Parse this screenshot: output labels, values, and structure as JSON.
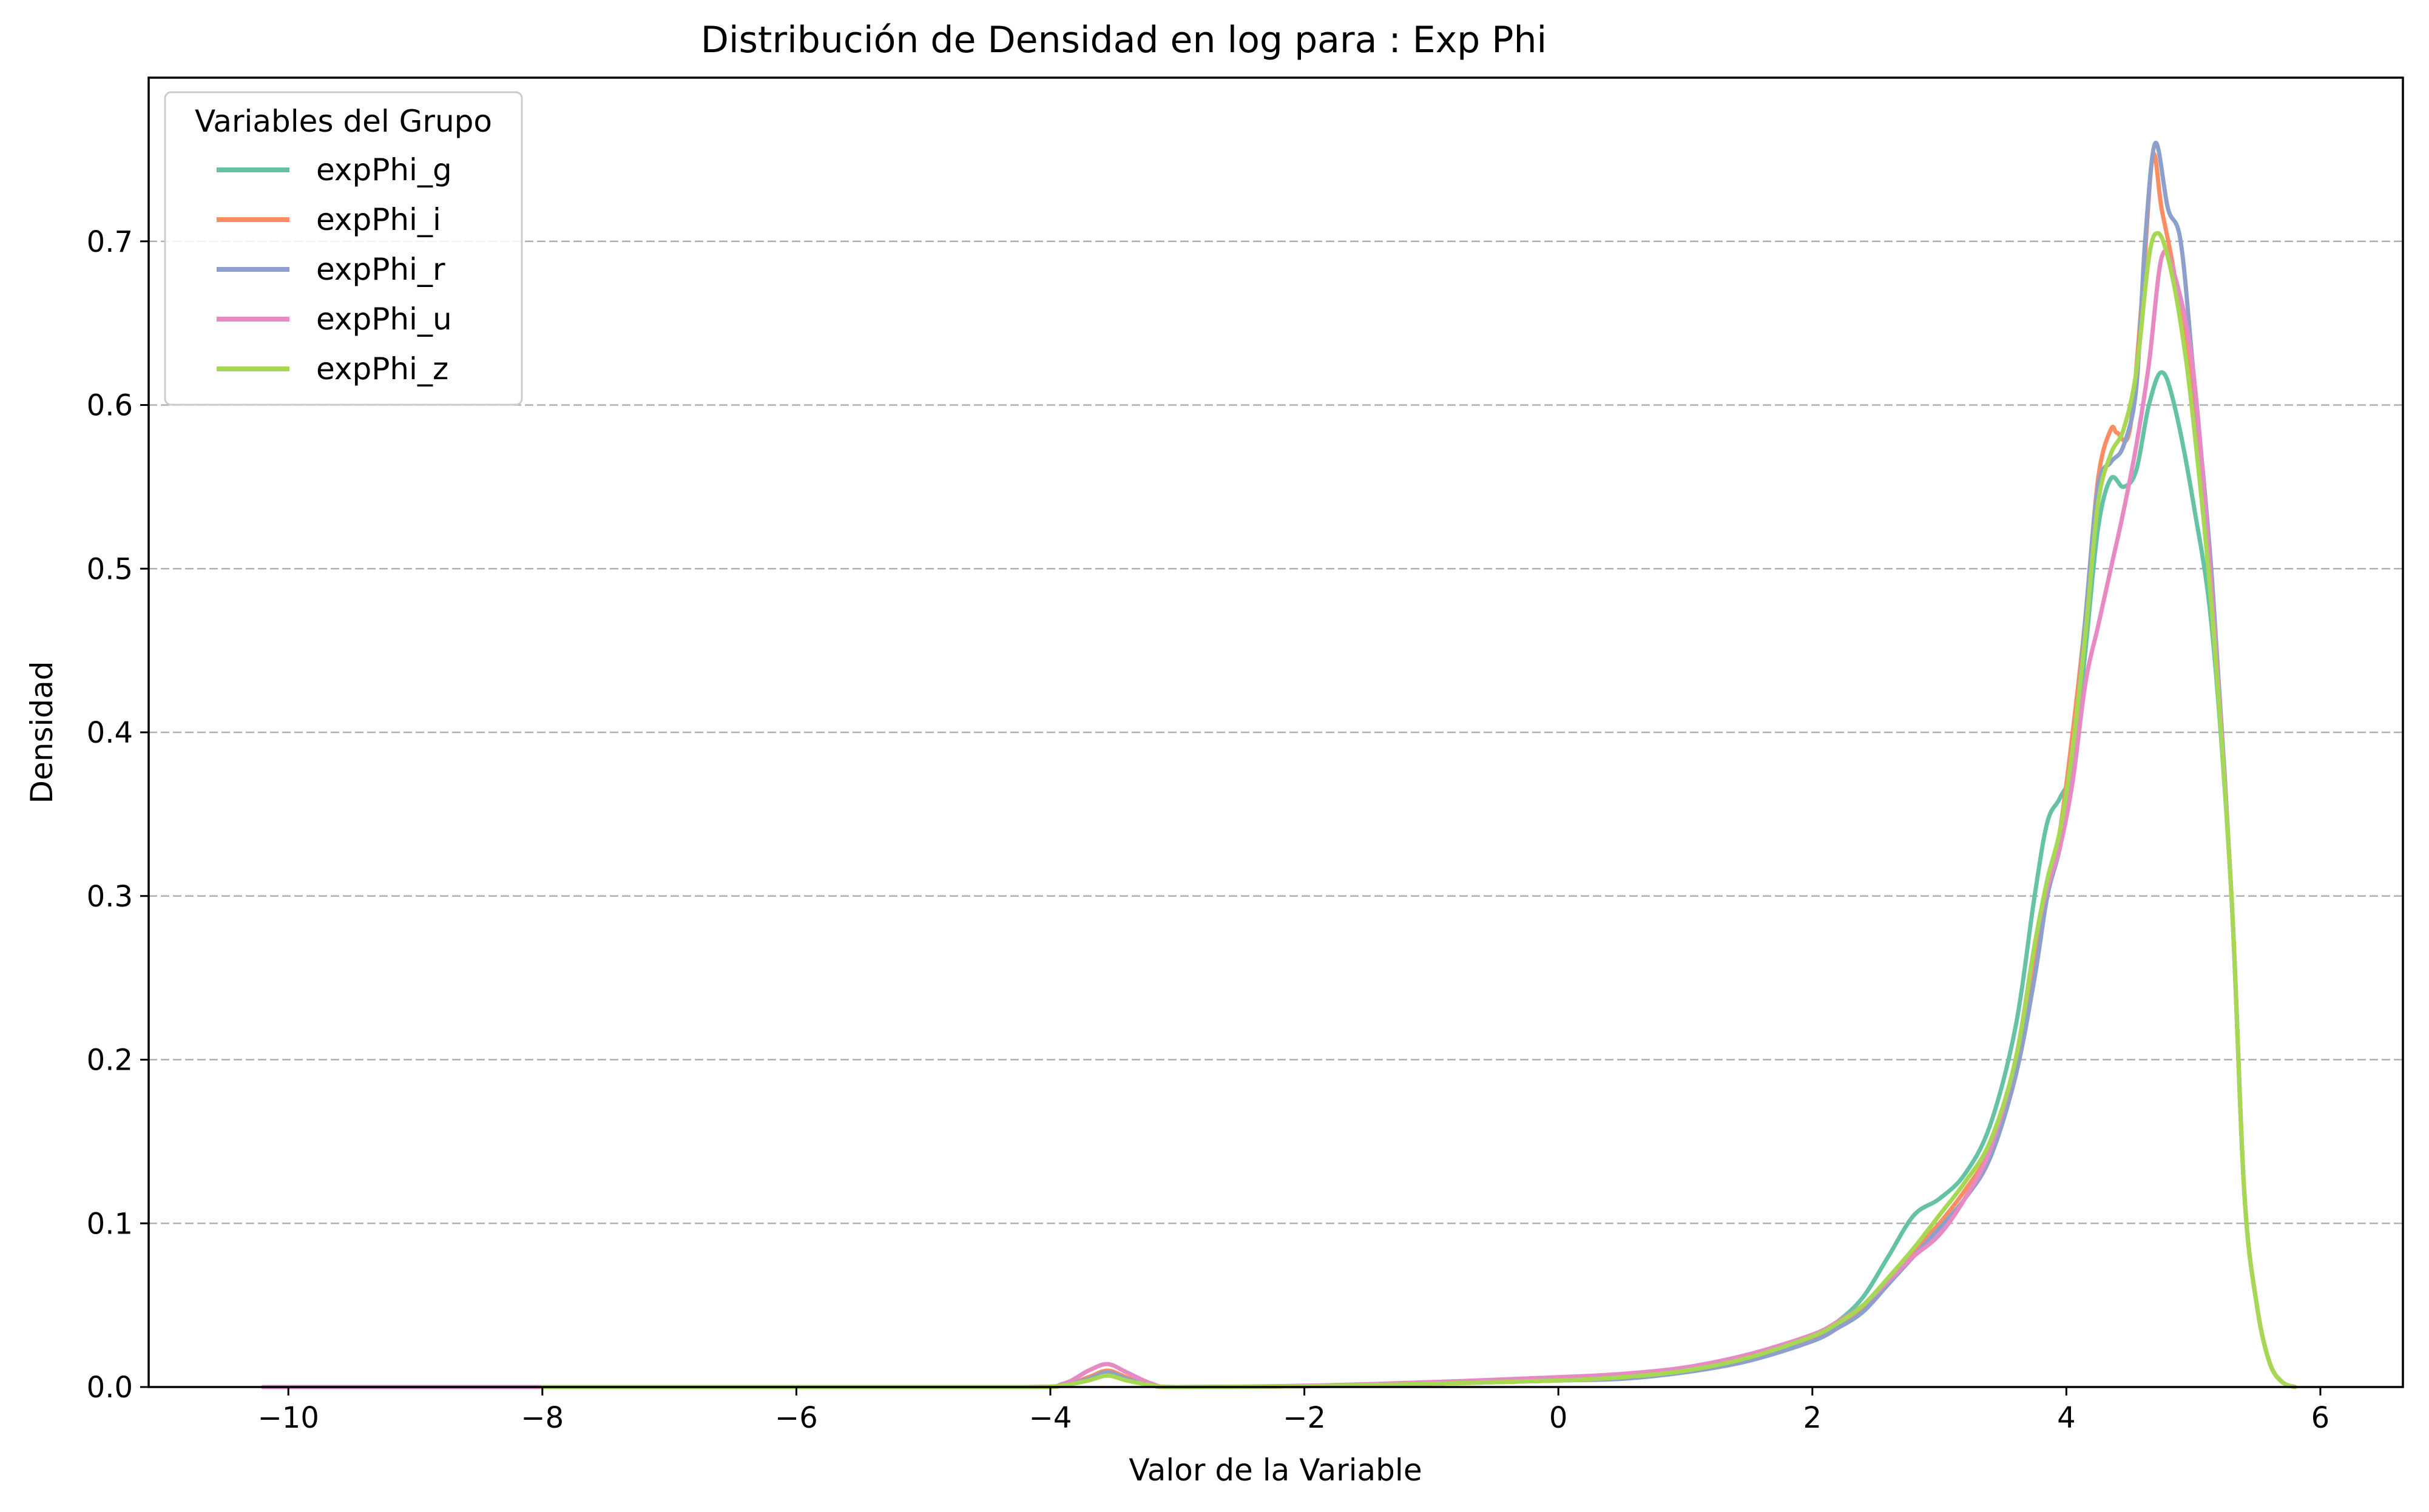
{
  "chart_data": {
    "type": "line",
    "title": "Distribución de Densidad en log para : Exp Phi",
    "xlabel": "Valor de la Variable",
    "ylabel": "Densidad",
    "xlim": [
      -11.1,
      6.65
    ],
    "ylim": [
      0,
      0.8
    ],
    "xticks": [
      -10,
      -8,
      -6,
      -4,
      -2,
      0,
      2,
      4,
      6
    ],
    "xtick_labels": [
      "−10",
      "−8",
      "−6",
      "−4",
      "−2",
      "0",
      "2",
      "4",
      "6"
    ],
    "yticks": [
      0.0,
      0.1,
      0.2,
      0.3,
      0.4,
      0.5,
      0.6,
      0.7
    ],
    "ytick_labels": [
      "0.0",
      "0.1",
      "0.2",
      "0.3",
      "0.4",
      "0.5",
      "0.6",
      "0.7"
    ],
    "grid": "y, dashed",
    "legend": {
      "title": "Variables del Grupo",
      "position": "top-left"
    },
    "series": [
      {
        "name": "expPhi_g",
        "color": "#66c2a5",
        "x": [
          -8.0,
          -6.0,
          -4.2,
          -3.9,
          -3.7,
          -3.55,
          -3.4,
          -3.2,
          -3.0,
          -2.0,
          -1.0,
          0.0,
          0.5,
          1.0,
          1.5,
          2.0,
          2.2,
          2.4,
          2.6,
          2.8,
          3.0,
          3.2,
          3.4,
          3.6,
          3.75,
          3.85,
          3.95,
          4.05,
          4.15,
          4.25,
          4.35,
          4.45,
          4.55,
          4.65,
          4.75,
          4.85,
          5.0,
          5.15,
          5.3,
          5.4,
          5.5,
          5.6,
          5.7,
          5.8
        ],
        "y": [
          0.0,
          0.0,
          0.0,
          0.001,
          0.005,
          0.008,
          0.005,
          0.001,
          0.0,
          0.0005,
          0.002,
          0.004,
          0.006,
          0.01,
          0.018,
          0.03,
          0.04,
          0.055,
          0.08,
          0.105,
          0.115,
          0.13,
          0.16,
          0.22,
          0.3,
          0.345,
          0.36,
          0.38,
          0.45,
          0.525,
          0.555,
          0.55,
          0.56,
          0.6,
          0.62,
          0.6,
          0.54,
          0.46,
          0.3,
          0.12,
          0.05,
          0.015,
          0.003,
          0.0
        ]
      },
      {
        "name": "expPhi_i",
        "color": "#fc8d62",
        "x": [
          -8.0,
          -6.0,
          -4.2,
          -3.9,
          -3.7,
          -3.55,
          -3.4,
          -3.2,
          -3.0,
          -2.0,
          -1.0,
          0.0,
          0.5,
          1.0,
          1.5,
          2.0,
          2.2,
          2.4,
          2.6,
          2.8,
          3.0,
          3.2,
          3.4,
          3.6,
          3.75,
          3.85,
          3.95,
          4.05,
          4.15,
          4.25,
          4.35,
          4.4,
          4.5,
          4.6,
          4.68,
          4.75,
          4.85,
          5.0,
          5.15,
          5.3,
          5.4,
          5.5,
          5.6,
          5.7,
          5.8
        ],
        "y": [
          0.0,
          0.0,
          0.0,
          0.001,
          0.006,
          0.01,
          0.006,
          0.001,
          0.0,
          0.0005,
          0.002,
          0.004,
          0.006,
          0.01,
          0.018,
          0.03,
          0.038,
          0.048,
          0.065,
          0.083,
          0.1,
          0.12,
          0.145,
          0.19,
          0.26,
          0.3,
          0.34,
          0.4,
          0.47,
          0.555,
          0.585,
          0.583,
          0.585,
          0.67,
          0.752,
          0.72,
          0.68,
          0.6,
          0.48,
          0.3,
          0.12,
          0.05,
          0.015,
          0.003,
          0.0
        ]
      },
      {
        "name": "expPhi_r",
        "color": "#8da0cb",
        "x": [
          -8.0,
          -6.0,
          -4.2,
          -3.9,
          -3.7,
          -3.55,
          -3.4,
          -3.2,
          -3.0,
          -2.0,
          -1.0,
          0.0,
          0.5,
          1.0,
          1.5,
          2.0,
          2.2,
          2.4,
          2.6,
          2.8,
          3.0,
          3.2,
          3.4,
          3.6,
          3.75,
          3.85,
          3.95,
          4.05,
          4.15,
          4.25,
          4.35,
          4.45,
          4.55,
          4.62,
          4.7,
          4.8,
          4.9,
          5.0,
          5.15,
          5.3,
          5.4,
          5.5,
          5.6,
          5.7,
          5.8
        ],
        "y": [
          0.0,
          0.0,
          0.0,
          0.001,
          0.005,
          0.009,
          0.005,
          0.001,
          0.0,
          0.0005,
          0.002,
          0.004,
          0.005,
          0.009,
          0.016,
          0.028,
          0.036,
          0.046,
          0.063,
          0.08,
          0.097,
          0.115,
          0.14,
          0.19,
          0.25,
          0.3,
          0.33,
          0.38,
          0.47,
          0.55,
          0.565,
          0.575,
          0.61,
          0.7,
          0.76,
          0.72,
          0.7,
          0.62,
          0.49,
          0.3,
          0.12,
          0.05,
          0.015,
          0.003,
          0.0
        ]
      },
      {
        "name": "expPhi_u",
        "color": "#e78ac3",
        "x": [
          -10.2,
          -8.0,
          -6.0,
          -4.2,
          -3.9,
          -3.7,
          -3.55,
          -3.4,
          -3.2,
          -3.0,
          -2.0,
          -1.0,
          0.0,
          0.5,
          1.0,
          1.5,
          2.0,
          2.2,
          2.4,
          2.6,
          2.8,
          3.0,
          3.2,
          3.4,
          3.6,
          3.75,
          3.85,
          3.95,
          4.05,
          4.15,
          4.25,
          4.35,
          4.45,
          4.55,
          4.65,
          4.75,
          4.85,
          5.0,
          5.15,
          5.3,
          5.4,
          5.5,
          5.6,
          5.7,
          5.8
        ],
        "y": [
          0.0,
          0.0,
          0.0,
          0.0,
          0.002,
          0.01,
          0.014,
          0.009,
          0.002,
          0.0,
          0.0008,
          0.003,
          0.006,
          0.008,
          0.012,
          0.02,
          0.032,
          0.04,
          0.05,
          0.065,
          0.08,
          0.093,
          0.115,
          0.145,
          0.2,
          0.27,
          0.305,
          0.33,
          0.37,
          0.43,
          0.465,
          0.5,
          0.535,
          0.575,
          0.625,
          0.69,
          0.68,
          0.62,
          0.48,
          0.3,
          0.12,
          0.05,
          0.015,
          0.003,
          0.0
        ]
      },
      {
        "name": "expPhi_z",
        "color": "#a6d854",
        "x": [
          -8.0,
          -6.0,
          -4.2,
          -3.9,
          -3.7,
          -3.55,
          -3.4,
          -3.2,
          -3.0,
          -2.0,
          -1.0,
          0.0,
          0.5,
          1.0,
          1.5,
          2.0,
          2.2,
          2.4,
          2.6,
          2.8,
          3.0,
          3.2,
          3.4,
          3.6,
          3.75,
          3.85,
          3.95,
          4.05,
          4.15,
          4.25,
          4.35,
          4.45,
          4.55,
          4.65,
          4.72,
          4.8,
          4.9,
          5.0,
          5.15,
          5.3,
          5.4,
          5.5,
          5.6,
          5.7,
          5.8
        ],
        "y": [
          0.0,
          0.0,
          0.0,
          0.001,
          0.004,
          0.007,
          0.004,
          0.001,
          0.0,
          0.0005,
          0.002,
          0.004,
          0.006,
          0.01,
          0.018,
          0.031,
          0.039,
          0.05,
          0.067,
          0.085,
          0.105,
          0.125,
          0.15,
          0.2,
          0.27,
          0.31,
          0.34,
          0.39,
          0.46,
          0.54,
          0.57,
          0.585,
          0.62,
          0.69,
          0.705,
          0.69,
          0.65,
          0.59,
          0.47,
          0.3,
          0.12,
          0.05,
          0.015,
          0.003,
          0.0
        ]
      }
    ]
  }
}
